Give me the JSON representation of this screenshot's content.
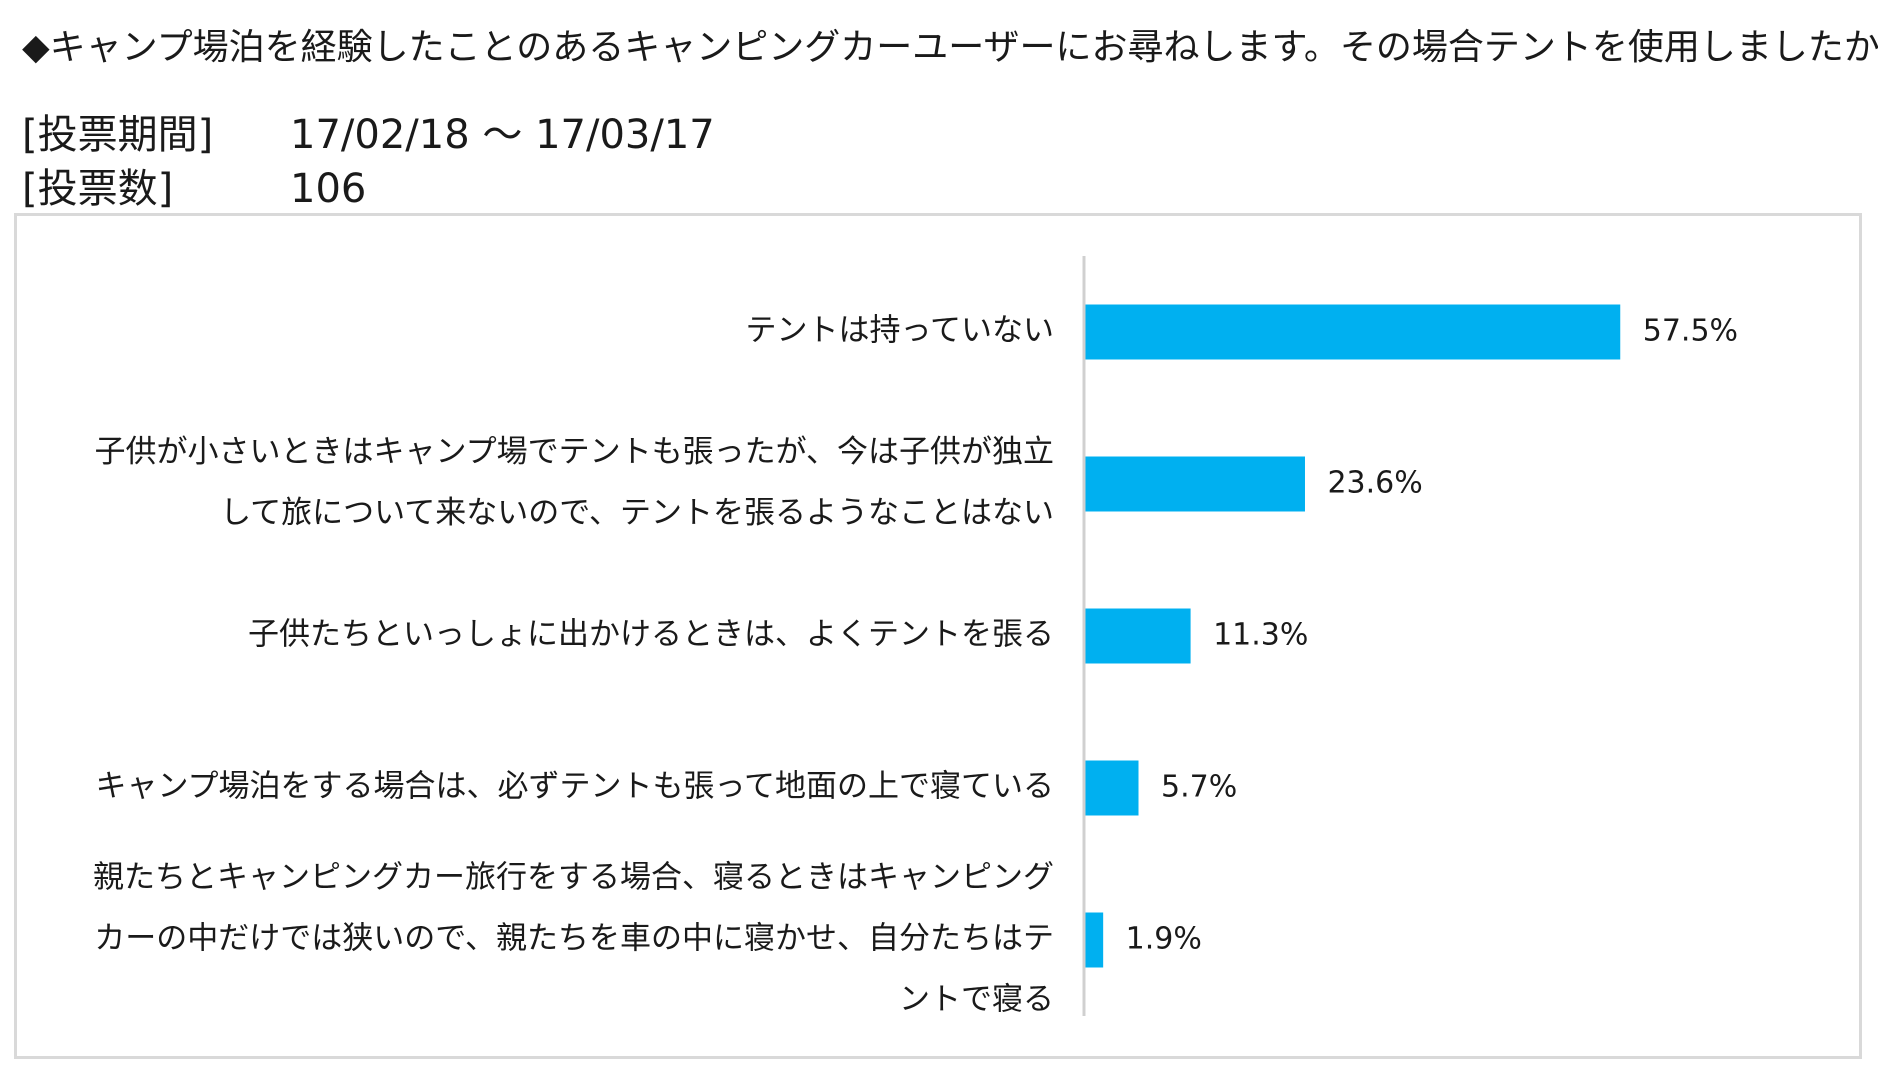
{
  "header": {
    "question": "◆キャンプ場泊を経験したことのあるキャンピングカーユーザーにお尋ねします。その場合テントを使用しましたか？",
    "period_label": "[投票期間]",
    "period_value": "17/02/18 ～ 17/03/17",
    "count_label": "[投票数]",
    "count_value": "106"
  },
  "chart_data": {
    "type": "bar",
    "orientation": "horizontal",
    "categories": [
      "テントは持っていない",
      "子供が小さいときはキャンプ場でテントも張ったが、今は子供が独立して旅について来ないので、テントを張るようなことはない",
      "子供たちといっしょに出かけるときは、よくテントを張る",
      "キャンプ場泊をする場合は、必ずテントも張って地面の上で寝ている",
      "親たちとキャンピングカー旅行をする場合、寝るときはキャンピングカーの中だけでは狭いので、親たちを車の中に寝かせ、自分たちはテントで寝る"
    ],
    "category_lines": [
      [
        "テントは持っていない"
      ],
      [
        "子供が小さいときはキャンプ場でテントも張ったが、今は子供が独立",
        "して旅について来ないので、テントを張るようなことはない"
      ],
      [
        "子供たちといっしょに出かけるときは、よくテントを張る"
      ],
      [
        "キャンプ場泊をする場合は、必ずテントも張って地面の上で寝ている"
      ],
      [
        "親たちとキャンピングカー旅行をする場合、寝るときはキャンピング",
        "カーの中だけでは狭いので、親たちを車の中に寝かせ、自分たちはテ",
        "ントで寝る"
      ]
    ],
    "values": [
      57.5,
      23.6,
      11.3,
      5.7,
      1.9
    ],
    "value_labels": [
      "57.5%",
      "23.6%",
      "11.3%",
      "5.7%",
      "1.9%"
    ],
    "unit": "%",
    "xlim": [
      0,
      100
    ],
    "grid": false,
    "legend": "none",
    "colors": {
      "bar": "#00b0f0",
      "axis": "#d0d0d0",
      "frame": "#d9d9d9"
    }
  }
}
